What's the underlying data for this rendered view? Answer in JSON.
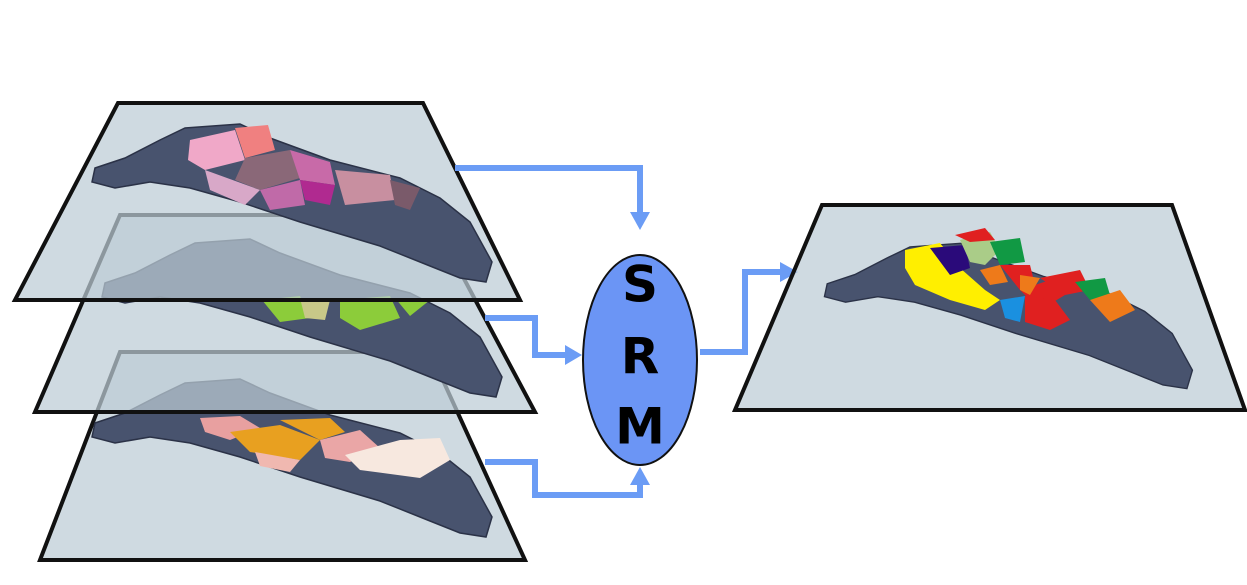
{
  "node": {
    "letters": [
      "S",
      "R",
      "M"
    ]
  }
}
